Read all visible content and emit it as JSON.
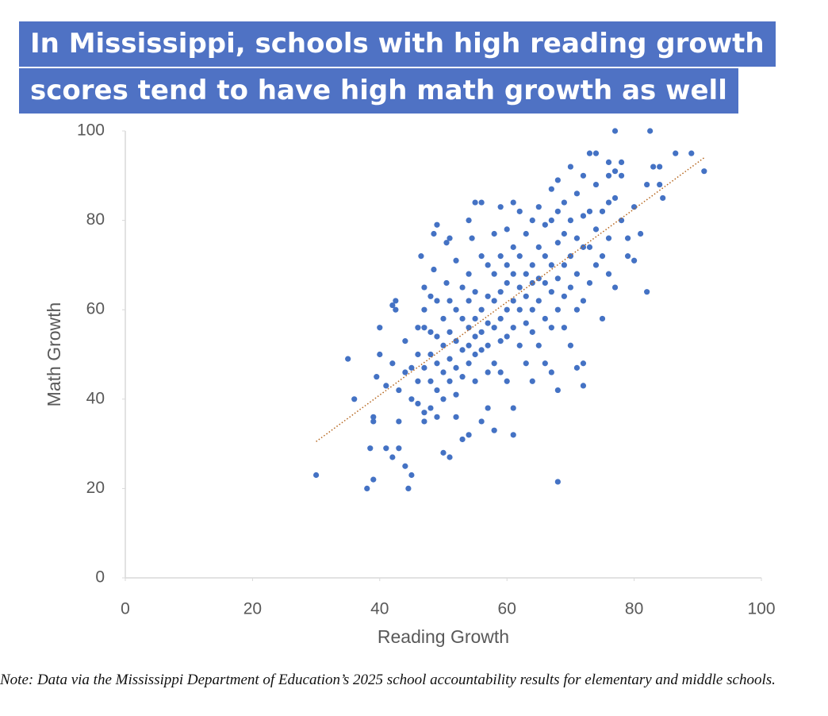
{
  "chart_data": {
    "type": "scatter",
    "title": [
      "In Mississippi, schools with high reading growth",
      "scores tend to have high math growth as well"
    ],
    "xlabel": "Reading Growth",
    "ylabel": "Math Growth",
    "note": "Note: Data via the Mississippi Department of Education’s 2025 school accountability results for elementary and middle schools.",
    "color": "#4472c4",
    "xlim": [
      0,
      100
    ],
    "xticks": [
      0,
      20,
      40,
      60,
      80,
      100
    ],
    "ylim": [
      0,
      100
    ],
    "yticks": [
      0,
      20,
      40,
      60,
      80,
      100
    ],
    "trendline": {
      "x": [
        30,
        91
      ],
      "y": [
        30.5,
        94
      ],
      "color": "#b5651d"
    },
    "x": [
      30,
      35,
      36,
      38,
      38.5,
      39,
      39,
      39,
      39.5,
      40,
      40,
      41,
      41,
      42,
      42,
      42,
      42.5,
      42.5,
      43,
      43,
      43,
      44,
      44,
      44,
      44.5,
      45,
      45,
      45,
      46,
      46,
      46,
      46,
      46.5,
      47,
      47,
      47,
      47,
      47,
      47,
      48,
      48,
      48,
      48,
      48,
      48.5,
      48.5,
      49,
      49,
      49,
      49,
      49,
      49,
      50,
      50,
      50,
      50,
      50,
      50.5,
      50.5,
      51,
      51,
      51,
      51,
      51,
      51,
      52,
      52,
      52,
      52,
      52,
      52,
      53,
      53,
      53,
      53,
      53,
      54,
      54,
      54,
      54,
      54,
      54,
      54,
      54.5,
      55,
      55,
      55,
      55,
      55,
      55,
      56,
      56,
      56,
      56,
      56,
      56,
      57,
      57,
      57,
      57,
      57,
      57,
      58,
      58,
      58,
      58,
      58,
      58,
      59,
      59,
      59,
      59,
      59,
      59,
      60,
      60,
      60,
      60,
      60,
      60,
      61,
      61,
      61,
      61,
      61,
      61,
      61,
      62,
      62,
      62,
      62,
      62,
      63,
      63,
      63,
      63,
      63,
      64,
      64,
      64,
      64,
      64,
      64,
      65,
      65,
      65,
      65,
      65,
      66,
      66,
      66,
      66,
      66,
      67,
      67,
      67,
      67,
      67,
      67,
      68,
      68,
      68,
      68,
      68,
      68,
      68,
      69,
      69,
      69,
      69,
      69,
      70,
      70,
      70,
      70,
      70,
      71,
      71,
      71,
      71,
      71,
      72,
      72,
      72,
      72,
      72,
      72,
      73,
      73,
      73,
      73,
      74,
      74,
      74,
      74,
      75,
      75,
      75,
      76,
      76,
      76,
      76,
      76,
      77,
      77,
      77,
      77,
      78,
      78,
      78,
      79,
      79,
      80,
      80,
      81,
      82,
      82,
      82.5,
      83,
      84,
      84,
      84.5,
      86.5,
      89,
      91
    ],
    "values": [
      23,
      49,
      40,
      20,
      29,
      22,
      36,
      35,
      45,
      50,
      56,
      29,
      43,
      61,
      48,
      27,
      62,
      60,
      29,
      42,
      35,
      46,
      53,
      25,
      20,
      23,
      47,
      40,
      56,
      50,
      44,
      39,
      72,
      60,
      65,
      56,
      47,
      37,
      35,
      63,
      55,
      50,
      44,
      38,
      77,
      69,
      79,
      62,
      54,
      48,
      42,
      36,
      58,
      52,
      46,
      40,
      28,
      75,
      66,
      76,
      62,
      55,
      49,
      44,
      27,
      71,
      60,
      53,
      47,
      41,
      36,
      65,
      58,
      51,
      45,
      31,
      80,
      68,
      62,
      56,
      52,
      48,
      32,
      76,
      84,
      64,
      58,
      54,
      50,
      44,
      84,
      72,
      60,
      55,
      51,
      35,
      70,
      63,
      57,
      52,
      46,
      38,
      77,
      68,
      62,
      56,
      48,
      33,
      83,
      72,
      64,
      58,
      53,
      46,
      78,
      70,
      66,
      60,
      54,
      44,
      84,
      74,
      68,
      62,
      56,
      32,
      38,
      82,
      72,
      65,
      60,
      52,
      77,
      68,
      63,
      57,
      48,
      80,
      70,
      66,
      60,
      55,
      44,
      83,
      74,
      67,
      62,
      52,
      79,
      72,
      66,
      58,
      48,
      87,
      80,
      70,
      64,
      56,
      46,
      89,
      82,
      75,
      67,
      60,
      42,
      21.5,
      84,
      77,
      70,
      63,
      56,
      92,
      80,
      72,
      65,
      52,
      86,
      76,
      68,
      60,
      47,
      90,
      81,
      74,
      62,
      43,
      48,
      95,
      82,
      74,
      66,
      88,
      78,
      70,
      95,
      82,
      72,
      58,
      90,
      84,
      76,
      68,
      93,
      100,
      91,
      85,
      65,
      93,
      80,
      90,
      76,
      72,
      83,
      71,
      77,
      64,
      88,
      100,
      92,
      92,
      88,
      85,
      95,
      95,
      91
    ]
  }
}
